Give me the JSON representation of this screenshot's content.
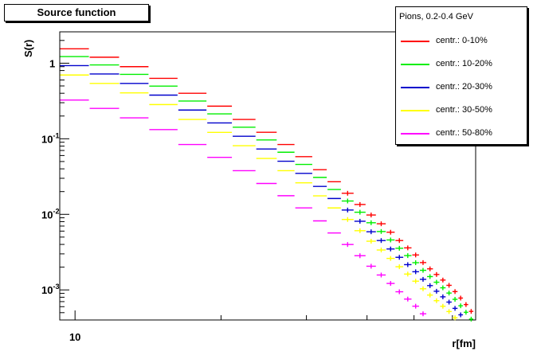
{
  "chart_data": {
    "type": "scatter",
    "title": "Source function",
    "xlabel": "r[fm]",
    "ylabel": "S(r)",
    "x_scale": "log",
    "y_scale": "log",
    "xlim": [
      9.3,
      67
    ],
    "ylim": [
      0.0004,
      2.6
    ],
    "x_tick_labels": [
      "10"
    ],
    "y_ticks": [
      {
        "base": "1",
        "exp": ""
      },
      {
        "base": "10",
        "exp": "-1"
      },
      {
        "base": "10",
        "exp": "-2"
      },
      {
        "base": "10",
        "exp": "-3"
      }
    ],
    "legend_title": "Pions, 0.2-0.4 GeV",
    "legend_position": "top-right",
    "series": [
      {
        "name": "centr.: 0-10%",
        "color": "#ff0000",
        "scale": 1.0
      },
      {
        "name": "centr.: 10-20%",
        "color": "#00ee00",
        "scale": 0.79
      },
      {
        "name": "centr.: 20-30%",
        "color": "#0000cc",
        "scale": 0.6
      },
      {
        "name": "centr.: 30-50%",
        "color": "#ffff00",
        "scale": 0.45
      },
      {
        "name": "centr.: 50-80%",
        "color": "#ff00ff",
        "scale": 0.21
      }
    ],
    "bins": [
      [
        9.3,
        10.7,
        1.55
      ],
      [
        10.7,
        12.35,
        1.2
      ],
      [
        12.35,
        14.2,
        0.9
      ],
      [
        14.2,
        16.3,
        0.63
      ],
      [
        16.3,
        18.7,
        0.4
      ],
      [
        18.7,
        21.1,
        0.27
      ],
      [
        21.1,
        23.6,
        0.18
      ],
      [
        23.6,
        26.1,
        0.122
      ],
      [
        26.1,
        28.4,
        0.084
      ],
      [
        28.4,
        30.9,
        0.058
      ],
      [
        30.9,
        33.1,
        0.039
      ],
      [
        33.1,
        35.4,
        0.027
      ],
      [
        35.4,
        37.6,
        0.019
      ],
      [
        37.6,
        39.8,
        0.0135
      ],
      [
        39.8,
        41.8,
        0.0098
      ],
      [
        41.8,
        43.8,
        0.0075
      ],
      [
        43.8,
        45.7,
        0.0058
      ],
      [
        45.7,
        47.6,
        0.0045
      ],
      [
        47.6,
        49.5,
        0.0036
      ],
      [
        49.5,
        51.3,
        0.0029
      ],
      [
        51.3,
        53.1,
        0.0023
      ],
      [
        53.1,
        54.8,
        0.0019
      ],
      [
        54.8,
        56.5,
        0.0016
      ],
      [
        56.5,
        58.2,
        0.00135
      ],
      [
        58.2,
        59.9,
        0.00115
      ],
      [
        59.9,
        61.6,
        0.00095
      ],
      [
        61.6,
        63.2,
        0.00078
      ],
      [
        63.2,
        64.8,
        0.00064
      ],
      [
        64.8,
        66.4,
        0.00052
      ]
    ]
  }
}
